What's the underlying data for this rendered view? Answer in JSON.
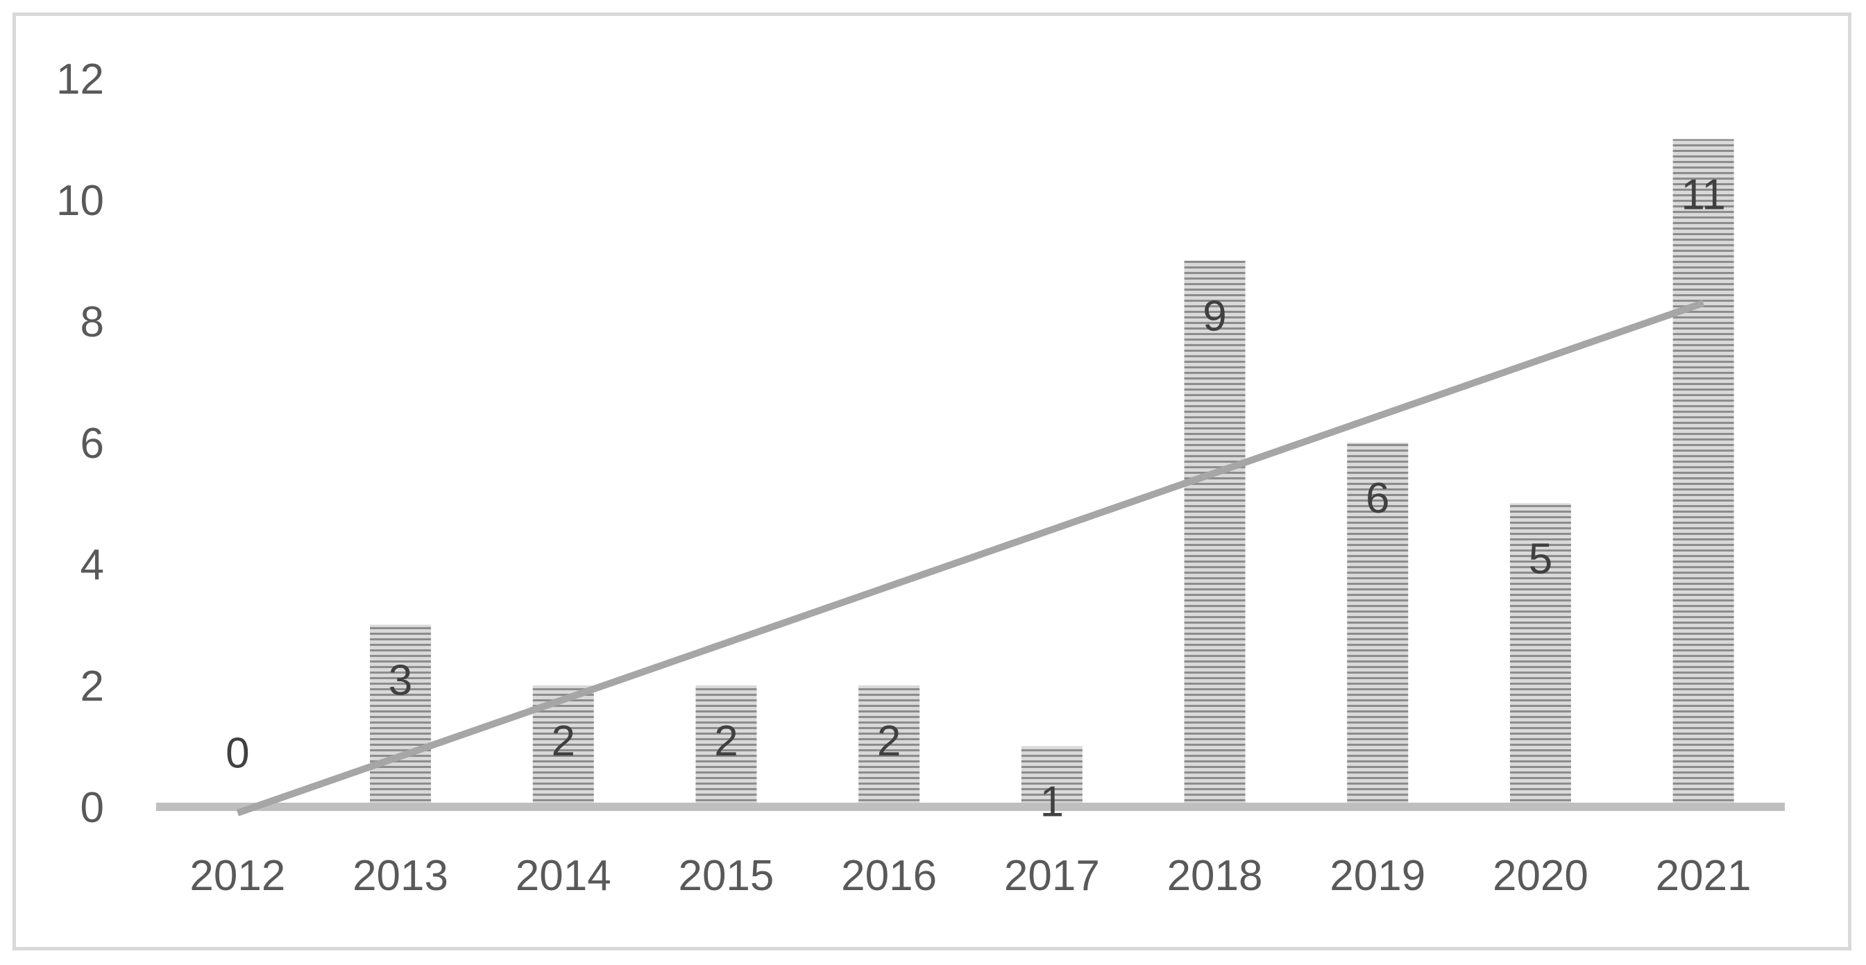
{
  "chart_data": {
    "type": "bar",
    "categories": [
      "2012",
      "2013",
      "2014",
      "2015",
      "2016",
      "2017",
      "2018",
      "2019",
      "2020",
      "2021"
    ],
    "values": [
      0,
      3,
      2,
      2,
      2,
      1,
      9,
      6,
      5,
      11
    ],
    "data_labels": [
      "0",
      "3",
      "2",
      "2",
      "2",
      "1",
      "9",
      "6",
      "5",
      "11"
    ],
    "yticks": [
      "0",
      "2",
      "4",
      "6",
      "8",
      "10",
      "12"
    ],
    "ylim": [
      0,
      12
    ],
    "title": "",
    "xlabel": "",
    "ylabel": "",
    "grid": false,
    "legend": "none",
    "trendline": {
      "type": "linear",
      "start_value": -0.1,
      "end_value": 8.3
    },
    "colors": {
      "bar_stripe_dark": "#8c8c8c",
      "bar_stripe_light": "#d9d9d9",
      "trendline": "#a6a6a6",
      "axis": "#bfbfbf",
      "frame": "#d9d9d9",
      "tick_text": "#595959",
      "label_text": "#404040"
    }
  }
}
